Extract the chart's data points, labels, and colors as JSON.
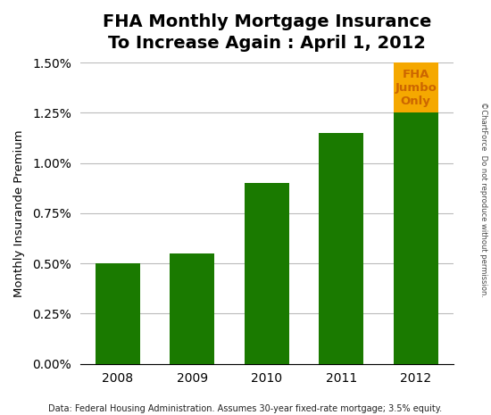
{
  "title_line1": "FHA Monthly Mortgage Insurance",
  "title_line2": "To Increase Again : April 1, 2012",
  "categories": [
    "2008",
    "2009",
    "2010",
    "2011",
    "2012"
  ],
  "green_values": [
    0.005,
    0.0055,
    0.009,
    0.0115,
    0.0125
  ],
  "orange_values": [
    0.0,
    0.0,
    0.0,
    0.0,
    0.0025
  ],
  "green_color": "#1a7a00",
  "orange_color": "#f5a800",
  "orange_text_color": "#cc6600",
  "ylim_min": 0.0,
  "ylim_max": 0.015,
  "yticks": [
    0.0,
    0.0025,
    0.005,
    0.0075,
    0.01,
    0.0125,
    0.015
  ],
  "ytick_labels": [
    "0.00%",
    "0.25%",
    "0.50%",
    "0.75%",
    "1.00%",
    "1.25%",
    "1.50%"
  ],
  "ylabel": "Monthly Insurande Premium",
  "footnote": "Data: Federal Housing Administration. Assumes 30-year fixed-rate mortgage; 3.5% equity.",
  "watermark": "©ChartForce  Do not reproduce without permission.",
  "jumbo_label": "FHA\nJumbo\nOnly",
  "background_color": "#ffffff",
  "grid_color": "#bbbbbb",
  "bar_width": 0.6
}
